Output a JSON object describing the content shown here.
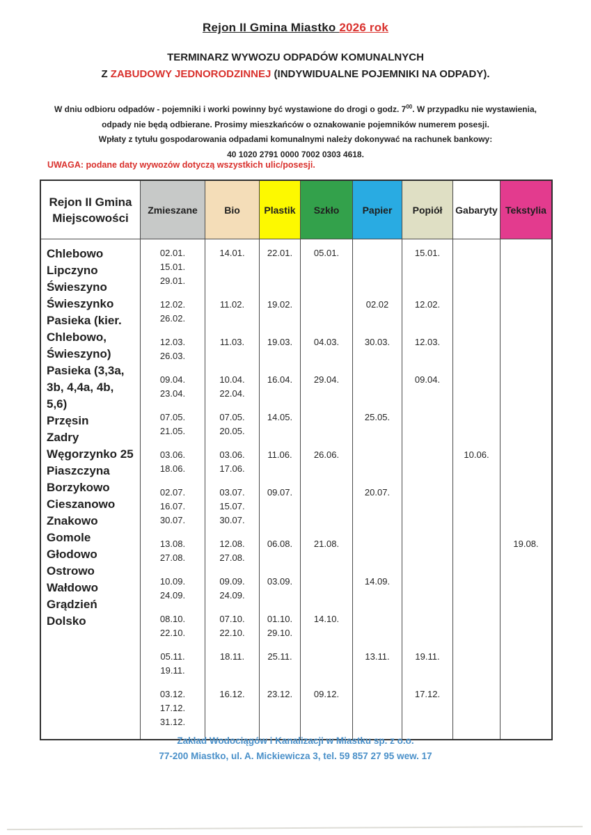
{
  "page": {
    "title_black": "Rejon II  Gmina Miastko ",
    "title_year": "2026 rok",
    "subtitle_line1": "TERMINARZ WYWOZU ODPADÓW KOMUNALNYCH",
    "subtitle_line2_prefix": "Z ",
    "subtitle_line2_red": "ZABUDOWY JEDNORODZINNEJ",
    "subtitle_line2_suffix": " (INDYWIDUALNE POJEMNIKI NA ODPADY).",
    "intro": {
      "line1_before": "W dniu odbioru odpadów  - pojemniki i worki powinny być wystawione do drogi o godz. 7",
      "line1_sup": "00",
      "line1_after": ". W przypadku nie wystawienia,",
      "line2": "odpady nie będą odbierane. Prosimy mieszkańców o oznakowanie pojemników numerem posesji.",
      "line3": "Wpłaty z tytułu gospodarowania odpadami komunalnymi należy dokonywać na rachunek bankowy:",
      "line4": "40 1020 2791 0000 7002 0303 4618."
    },
    "warning": "UWAGA: podane daty wywozów dotyczą wszystkich ulic/posesji.",
    "footer_line1": "Zakład Wodociągów i Kanalizacji w Miastku sp. z o.o.",
    "footer_line2": "77-200 Miastko, ul. A. Mickiewicza 3, tel. 59 857 27 95 wew. 17"
  },
  "colors": {
    "accent_red": "#d9312d",
    "footer_blue": "#4a90c9",
    "table_border": "#2f2f2f"
  },
  "table": {
    "corner_line1": "Rejon II Gmina",
    "corner_line2": "Miejscowości",
    "columns": [
      {
        "key": "zmieszane",
        "label": "Zmieszane",
        "color": "#c7c9c8"
      },
      {
        "key": "bio",
        "label": "Bio",
        "color": "#f4ddb8"
      },
      {
        "key": "plastik",
        "label": "Plastik",
        "color": "#fdf900"
      },
      {
        "key": "szklo",
        "label": "Szkło",
        "color": "#33a14b"
      },
      {
        "key": "papier",
        "label": "Papier",
        "color": "#29abe2"
      },
      {
        "key": "popiol",
        "label": "Popiół",
        "color": "#dfdfc4"
      },
      {
        "key": "gabaryty",
        "label": "Gabaryty",
        "color": "#ffffff"
      },
      {
        "key": "tekstylia",
        "label": "Tekstylia",
        "color": "#e33b8e"
      }
    ],
    "localities": [
      "Chlebowo",
      "Lipczyno",
      "Świeszyno",
      "Świeszynko",
      "Pasieka (kier.",
      "Chlebowo,",
      "Świeszyno)",
      "Pasieka (3,3a,",
      "3b, 4,4a, 4b,",
      "5,6)",
      "Przęsin",
      "Zadry",
      "Węgorzynko 25",
      "Piaszczyna",
      "Borzykowo",
      "Cieszanowo",
      "Znakowo",
      "Gomole",
      "Głodowo",
      "Ostrowo",
      "Wałdowo",
      "Grądzień",
      "Dolsko"
    ],
    "months": [
      {
        "zmieszane": [
          "02.01.",
          "15.01.",
          "29.01."
        ],
        "bio": [
          "14.01."
        ],
        "plastik": [
          "22.01."
        ],
        "szklo": [
          "05.01."
        ],
        "papier": [],
        "popiol": [
          "15.01."
        ],
        "gabaryty": [],
        "tekstylia": []
      },
      {
        "zmieszane": [
          "12.02.",
          "26.02."
        ],
        "bio": [
          "11.02."
        ],
        "plastik": [
          "19.02."
        ],
        "szklo": [],
        "papier": [
          "02.02"
        ],
        "popiol": [
          "12.02."
        ],
        "gabaryty": [],
        "tekstylia": []
      },
      {
        "zmieszane": [
          "12.03.",
          "26.03."
        ],
        "bio": [
          "11.03."
        ],
        "plastik": [
          "19.03."
        ],
        "szklo": [
          "04.03."
        ],
        "papier": [
          "30.03."
        ],
        "popiol": [
          "12.03."
        ],
        "gabaryty": [],
        "tekstylia": []
      },
      {
        "zmieszane": [
          "09.04.",
          "23.04."
        ],
        "bio": [
          "10.04.",
          "22.04."
        ],
        "plastik": [
          "16.04."
        ],
        "szklo": [
          "29.04."
        ],
        "papier": [],
        "popiol": [
          "09.04."
        ],
        "gabaryty": [],
        "tekstylia": []
      },
      {
        "zmieszane": [
          "07.05.",
          "21.05."
        ],
        "bio": [
          "07.05.",
          "20.05."
        ],
        "plastik": [
          "14.05."
        ],
        "szklo": [],
        "papier": [
          "25.05."
        ],
        "popiol": [],
        "gabaryty": [],
        "tekstylia": []
      },
      {
        "zmieszane": [
          "03.06.",
          "18.06."
        ],
        "bio": [
          "03.06.",
          "17.06."
        ],
        "plastik": [
          "11.06."
        ],
        "szklo": [
          "26.06."
        ],
        "papier": [],
        "popiol": [],
        "gabaryty": [
          "10.06."
        ],
        "tekstylia": []
      },
      {
        "zmieszane": [
          "02.07.",
          "16.07.",
          "30.07."
        ],
        "bio": [
          "03.07.",
          "15.07.",
          "30.07."
        ],
        "plastik": [
          "09.07."
        ],
        "szklo": [],
        "papier": [
          "20.07."
        ],
        "popiol": [],
        "gabaryty": [],
        "tekstylia": []
      },
      {
        "zmieszane": [
          "13.08.",
          "27.08."
        ],
        "bio": [
          "12.08.",
          "27.08."
        ],
        "plastik": [
          "06.08."
        ],
        "szklo": [
          "21.08."
        ],
        "papier": [],
        "popiol": [],
        "gabaryty": [],
        "tekstylia": [
          "19.08."
        ]
      },
      {
        "zmieszane": [
          "10.09.",
          "24.09."
        ],
        "bio": [
          "09.09.",
          "24.09."
        ],
        "plastik": [
          "03.09."
        ],
        "szklo": [],
        "papier": [
          "14.09."
        ],
        "popiol": [],
        "gabaryty": [],
        "tekstylia": []
      },
      {
        "zmieszane": [
          "08.10.",
          "22.10."
        ],
        "bio": [
          "07.10.",
          "22.10."
        ],
        "plastik": [
          "01.10.",
          "29.10."
        ],
        "szklo": [
          "14.10."
        ],
        "papier": [],
        "popiol": [],
        "gabaryty": [],
        "tekstylia": []
      },
      {
        "zmieszane": [
          "05.11.",
          "19.11."
        ],
        "bio": [
          "18.11."
        ],
        "plastik": [
          "25.11."
        ],
        "szklo": [],
        "papier": [
          "13.11."
        ],
        "popiol": [
          "19.11."
        ],
        "gabaryty": [],
        "tekstylia": []
      },
      {
        "zmieszane": [
          "03.12.",
          "17.12.",
          "31.12."
        ],
        "bio": [
          "16.12."
        ],
        "plastik": [
          "23.12."
        ],
        "szklo": [
          "09.12."
        ],
        "papier": [],
        "popiol": [
          "17.12."
        ],
        "gabaryty": [],
        "tekstylia": []
      }
    ]
  }
}
